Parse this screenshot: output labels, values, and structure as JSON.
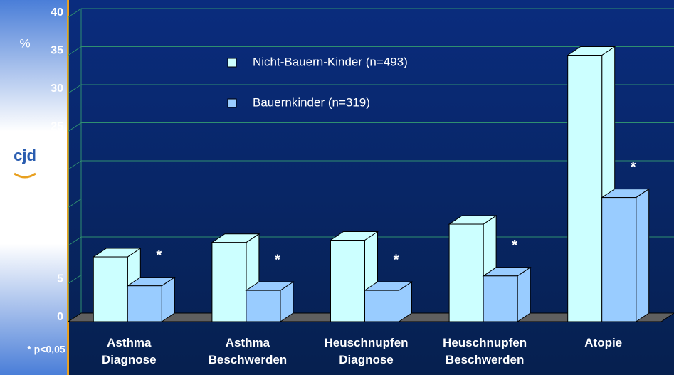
{
  "chart_data": {
    "type": "bar",
    "y_label": "%",
    "note": "* p<0,05",
    "logo": "cjd",
    "categories": [
      "Asthma Diagnose",
      "Asthma Beschwerden",
      "Heuschnupfen Diagnose",
      "Heuschnupfen Beschwerden",
      "Atopie"
    ],
    "series": [
      {
        "name": "Nicht-Bauern-Kinder (n=493)",
        "color": "#ccffff",
        "values": [
          8.5,
          10.4,
          10.7,
          12.8,
          35
        ]
      },
      {
        "name": "Bauernkinder (n=319)",
        "color": "#99ccff",
        "values": [
          4.7,
          4.1,
          4.1,
          6.0,
          16.3
        ]
      }
    ],
    "significance_markers": [
      "*",
      "*",
      "*",
      "*",
      "*"
    ],
    "ylim": [
      0,
      40
    ],
    "yticks": [
      0,
      5,
      10,
      15,
      20,
      25,
      30,
      35,
      40
    ],
    "grid": true,
    "legend": "top"
  }
}
